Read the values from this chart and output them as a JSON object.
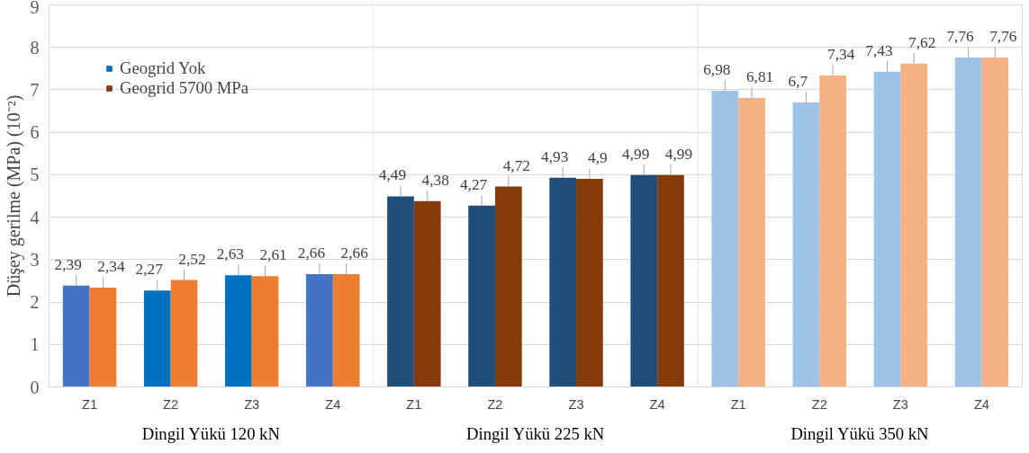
{
  "chart_data": {
    "type": "bar",
    "ylabel": "Düşey gerilme (MPa) (10⁻²)",
    "categories": [
      "Z1",
      "Z2",
      "Z3",
      "Z4",
      "Z1",
      "Z2",
      "Z3",
      "Z4",
      "Z1",
      "Z2",
      "Z3",
      "Z4"
    ],
    "series": [
      {
        "name": "Geogrid Yok",
        "color": "#0070c0",
        "colors": [
          "#4472c4",
          "#0070c0",
          "#0070c0",
          "#4472c4",
          "#1f4e79",
          "#1f4e79",
          "#1f4e79",
          "#1f4e79",
          "#9dc3e6",
          "#9dc3e6",
          "#9dc3e6",
          "#9dc3e6"
        ],
        "values": [
          2.39,
          2.27,
          2.63,
          2.66,
          4.49,
          4.27,
          4.93,
          4.99,
          6.98,
          6.7,
          7.43,
          7.76
        ],
        "value_labels": [
          "2,39",
          "2,27",
          "2,63",
          "2,66",
          "4,49",
          "4,27",
          "4,93",
          "4,99",
          "6,98",
          "6,7",
          "7,43",
          "7,76"
        ]
      },
      {
        "name": "Geogrid 5700 MPa",
        "color": "#843c0c",
        "colors": [
          "#ed7d31",
          "#ed7d31",
          "#ed7d31",
          "#ed7d31",
          "#843c0c",
          "#843c0c",
          "#843c0c",
          "#843c0c",
          "#f4b183",
          "#f4b183",
          "#f4b183",
          "#f4b183"
        ],
        "values": [
          2.34,
          2.52,
          2.61,
          2.66,
          4.38,
          4.72,
          4.9,
          4.99,
          6.81,
          7.34,
          7.62,
          7.76
        ],
        "value_labels": [
          "2,34",
          "2,52",
          "2,61",
          "2,66",
          "4,38",
          "4,72",
          "4,9",
          "4,99",
          "6,81",
          "7,34",
          "7,62",
          "7,76"
        ]
      }
    ],
    "annotations": [
      "Dingil Yükü 120 kN",
      "Dingil Yükü 225 kN",
      "Dingil Yükü 350 kN"
    ],
    "ylim": [
      0,
      9
    ],
    "yticks": [
      0,
      1,
      2,
      3,
      4,
      5,
      6,
      7,
      8,
      9
    ],
    "grid": "y",
    "legend": "top left"
  }
}
